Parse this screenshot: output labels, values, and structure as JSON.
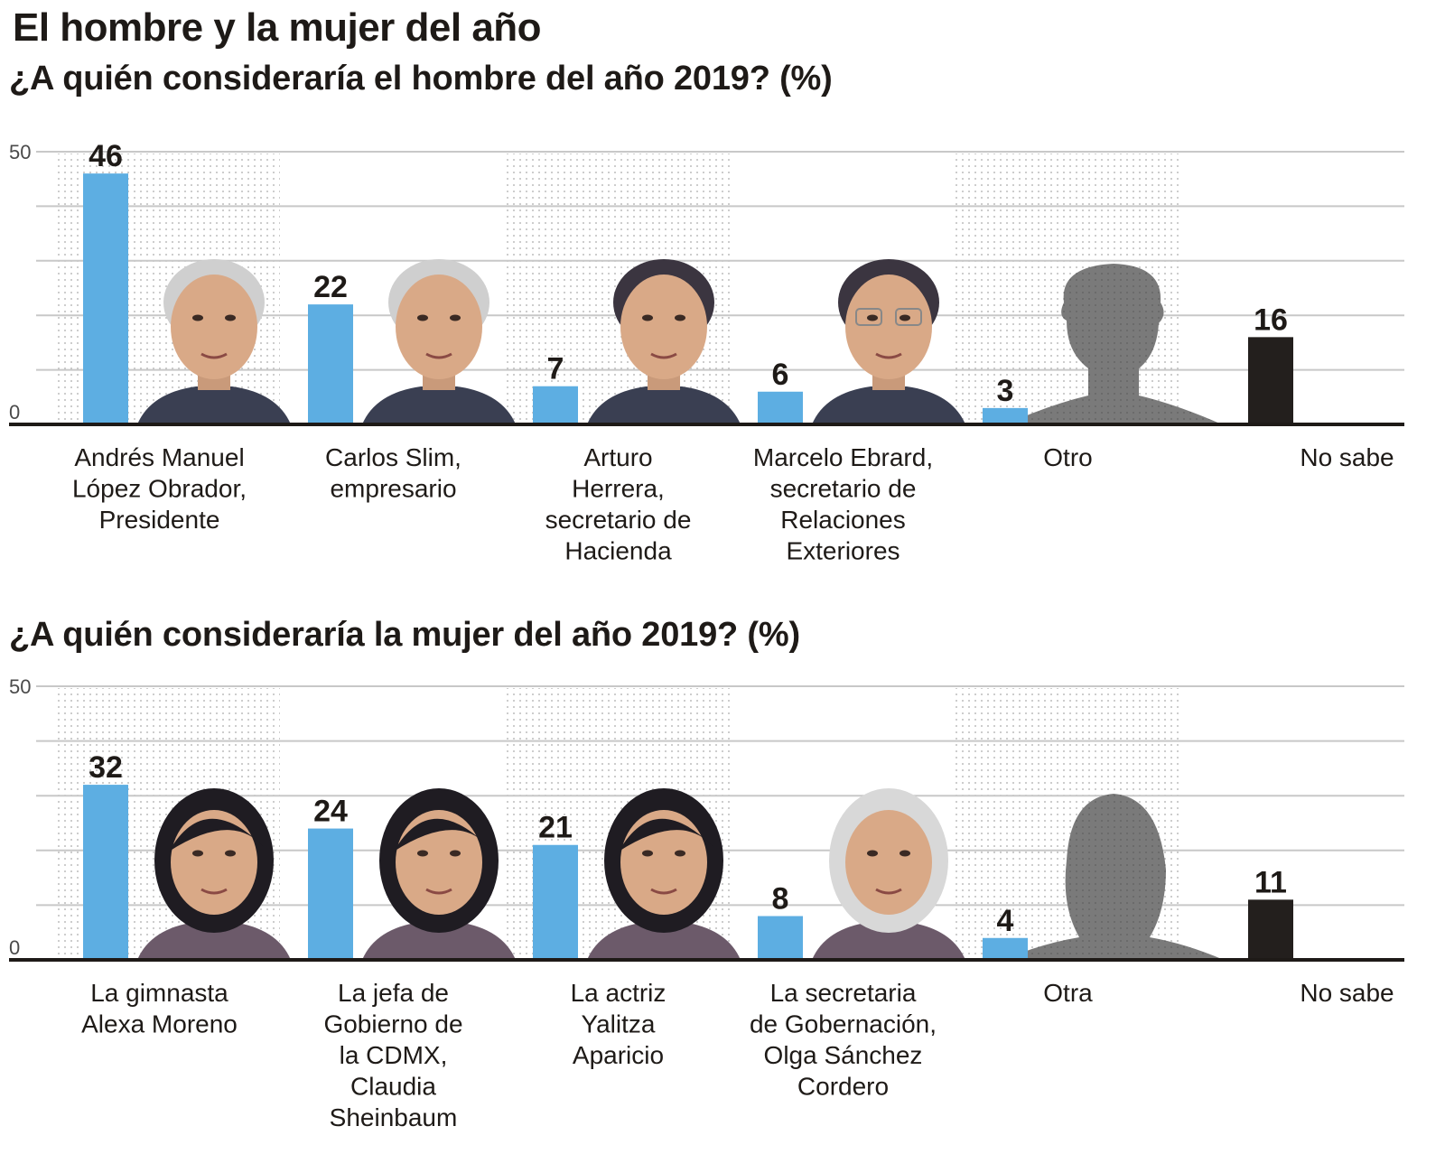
{
  "title": "El hombre y la mujer del año",
  "colors": {
    "candidate_bar": "#5daee2",
    "no_sabe_bar": "#231f1d",
    "gridline": "#c8c8c8",
    "baseline": "#1e1a17",
    "silhouette": "#7a7a7a",
    "dot_pattern": "#bdbdbd"
  },
  "chart_data": [
    {
      "type": "bar",
      "title": "¿A quién consideraría el hombre del año 2019?  (%)",
      "xlabel": "",
      "ylabel": "%",
      "ylim": [
        0,
        50
      ],
      "yticks_labeled": [
        0,
        50
      ],
      "gridlines_every": 10,
      "grid": true,
      "legend": "none",
      "categories": [
        [
          "Andrés Manuel",
          "López Obrador,",
          "Presidente"
        ],
        [
          "Carlos Slim,",
          "empresario"
        ],
        [
          "Arturo",
          "Herrera,",
          "secretario de",
          "Hacienda"
        ],
        [
          "Marcelo Ebrard,",
          "secretario de",
          "Relaciones",
          "Exteriores"
        ],
        [
          "Otro"
        ],
        [
          "No sabe"
        ]
      ],
      "values": [
        46,
        22,
        7,
        6,
        3,
        16
      ],
      "bar_kinds": [
        "candidate",
        "candidate",
        "candidate",
        "candidate",
        "candidate",
        "no_sabe"
      ],
      "photos": [
        "man-photo",
        "man-photo",
        "man-photo",
        "man-photo-glasses",
        "man-silhouette",
        "none"
      ]
    },
    {
      "type": "bar",
      "title": "¿A quién consideraría la mujer del año 2019?  (%)",
      "xlabel": "",
      "ylabel": "%",
      "ylim": [
        0,
        50
      ],
      "yticks_labeled": [
        0,
        50
      ],
      "gridlines_every": 10,
      "grid": true,
      "legend": "none",
      "categories": [
        [
          "La gimnasta",
          "Alexa Moreno"
        ],
        [
          "La jefa de",
          "Gobierno de",
          "la CDMX,",
          "Claudia",
          "Sheinbaum"
        ],
        [
          "La actriz",
          "Yalitza",
          "Aparicio"
        ],
        [
          "La secretaria",
          "de Gobernación,",
          "Olga Sánchez",
          "Cordero"
        ],
        [
          "Otra"
        ],
        [
          "No sabe"
        ]
      ],
      "values": [
        32,
        24,
        21,
        8,
        4,
        11
      ],
      "bar_kinds": [
        "candidate",
        "candidate",
        "candidate",
        "candidate",
        "candidate",
        "no_sabe"
      ],
      "photos": [
        "woman-photo",
        "woman-photo",
        "woman-photo",
        "woman-photo-gray",
        "woman-silhouette",
        "none"
      ]
    }
  ]
}
